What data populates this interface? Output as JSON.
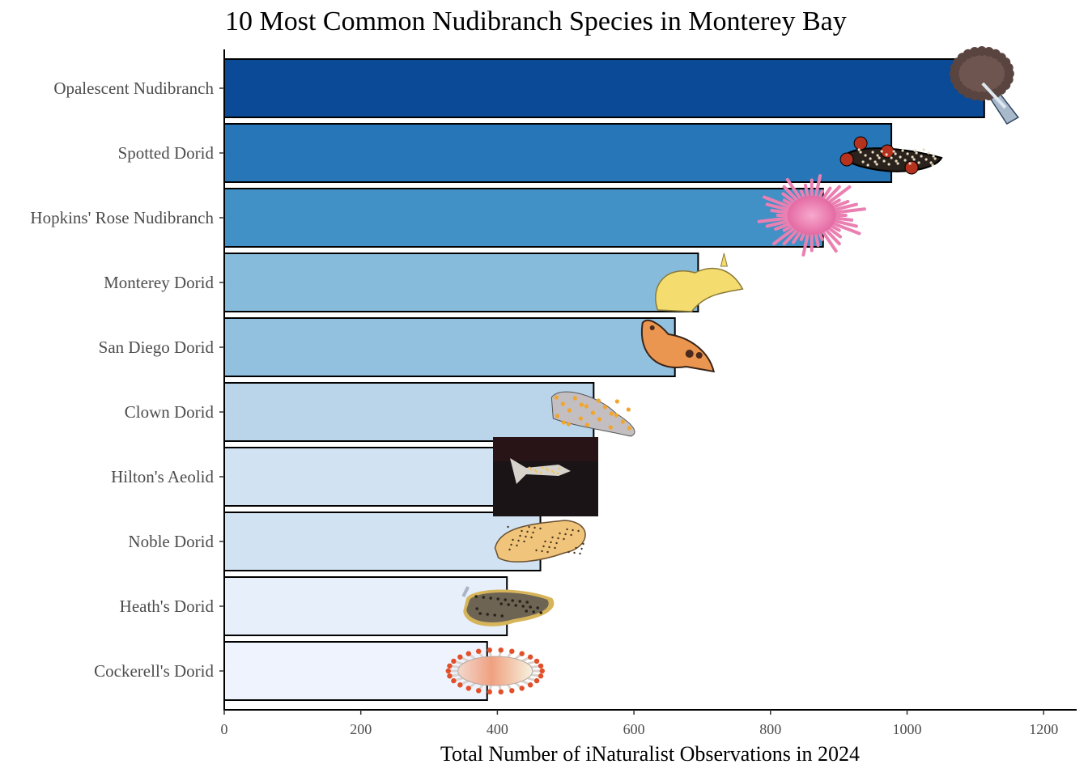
{
  "chart_data": {
    "type": "bar",
    "orientation": "horizontal",
    "title": "10 Most Common Nudibranch Species in Monterey Bay",
    "xlabel": "Total Number of iNaturalist Observations in 2024",
    "ylabel": "",
    "xlim": [
      0,
      1230
    ],
    "xticks": [
      "0",
      "200",
      "400",
      "600",
      "800",
      "1000",
      "1200"
    ],
    "grid": false,
    "legend": "none",
    "categories": [
      "Opalescent Nudibranch",
      "Spotted Dorid",
      "Hopkins' Rose Nudibranch",
      "Monterey Dorid",
      "San Diego Dorid",
      "Clown Dorid",
      "Hilton's Aeolid",
      "Noble Dorid",
      "Heath's Dorid",
      "Cockerell's Dorid"
    ],
    "values": [
      1113,
      977,
      877,
      694,
      660,
      541,
      410,
      463,
      414,
      385
    ],
    "colors": [
      "#0b4a96",
      "#2776b8",
      "#4190c6",
      "#87bbdb",
      "#92c1df",
      "#bad5ea",
      "#d1e2f3",
      "#d1e2f3",
      "#e7effa",
      "#eef3fd"
    ],
    "icons": [
      "opalescent-nudibranch-icon",
      "spotted-dorid-icon",
      "hopkins-rose-nudibranch-icon",
      "monterey-dorid-icon",
      "san-diego-dorid-icon",
      "clown-dorid-icon",
      "hiltons-aeolid-photo",
      "noble-dorid-icon",
      "heaths-dorid-icon",
      "cockerells-dorid-icon"
    ]
  }
}
